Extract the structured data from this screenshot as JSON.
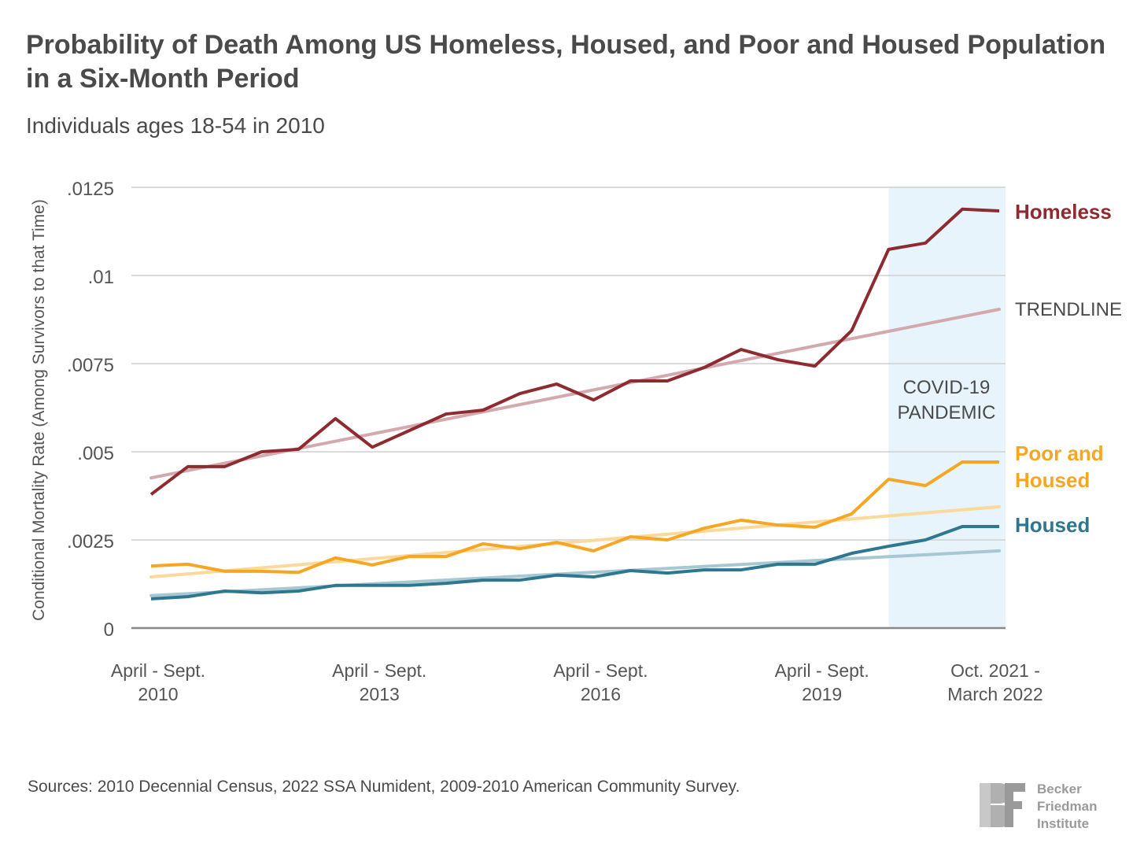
{
  "title": "Probability of Death Among US Homeless, Housed, and Poor and Housed Population in a Six-Month Period",
  "subtitle": "Individuals ages 18-54 in 2010",
  "source": "Sources: 2010 Decennial Census, 2022 SSA Numident, 2009-2010 American Community Survey.",
  "logo": {
    "lines": [
      "Becker",
      "Friedman",
      "Institute"
    ]
  },
  "chart_data": {
    "type": "line",
    "ylabel": "Conditional Mortality Rate (Among Survivors to that Time)",
    "xlabel": "",
    "ylim": [
      0,
      0.0125
    ],
    "yticks": [
      {
        "value": 0,
        "label": "0"
      },
      {
        "value": 0.0025,
        "label": ".0025"
      },
      {
        "value": 0.005,
        "label": ".005"
      },
      {
        "value": 0.0075,
        "label": ".0075"
      },
      {
        "value": 0.01,
        "label": ".01"
      },
      {
        "value": 0.0125,
        "label": ".0125"
      }
    ],
    "grid": true,
    "xticks": [
      {
        "index": 0,
        "label": [
          "April - Sept.",
          "2010"
        ]
      },
      {
        "index": 6,
        "label": [
          "April - Sept.",
          "2013"
        ]
      },
      {
        "index": 12,
        "label": [
          "April - Sept.",
          "2016"
        ]
      },
      {
        "index": 18,
        "label": [
          "April - Sept.",
          "2019"
        ]
      },
      {
        "index": 23,
        "label": [
          "Oct. 2021 -",
          "March 2022"
        ]
      }
    ],
    "n_periods": 24,
    "shaded_region": {
      "label": [
        "COVID-19",
        "PANDEMIC"
      ],
      "start_index": 20,
      "color": "#e8f4fc"
    },
    "series": [
      {
        "name": "Homeless",
        "label": [
          "Homeless"
        ],
        "color": "#8e2b31",
        "values": [
          0.00379,
          0.00458,
          0.00458,
          0.005,
          0.00507,
          0.00594,
          0.00513,
          0.0056,
          0.00607,
          0.00618,
          0.00665,
          0.00692,
          0.00647,
          0.00701,
          0.00701,
          0.00739,
          0.0079,
          0.00761,
          0.00743,
          0.00844,
          0.01074,
          0.01092,
          0.01188,
          0.01183
        ],
        "trend": [
          0.00426,
          0.00904
        ],
        "trend_color": "#d4a9ad"
      },
      {
        "name": "Poor and Housed",
        "label": [
          "Poor and",
          "Housed"
        ],
        "color": "#f5a623",
        "values": [
          0.00176,
          0.00181,
          0.00161,
          0.00161,
          0.00158,
          0.00199,
          0.00179,
          0.00203,
          0.00203,
          0.00239,
          0.00225,
          0.00243,
          0.00219,
          0.00259,
          0.0025,
          0.00283,
          0.00306,
          0.00292,
          0.00286,
          0.00324,
          0.00422,
          0.00404,
          0.00471,
          0.00471
        ],
        "trend": [
          0.00145,
          0.00344
        ],
        "trend_color": "#fbd99a"
      },
      {
        "name": "Housed",
        "label": [
          "Housed"
        ],
        "color": "#2f7690",
        "values": [
          0.00083,
          0.00089,
          0.00105,
          0.001,
          0.00105,
          0.00121,
          0.00121,
          0.00121,
          0.00127,
          0.00136,
          0.00136,
          0.0015,
          0.00145,
          0.00163,
          0.00156,
          0.00165,
          0.00165,
          0.00181,
          0.00181,
          0.00212,
          0.00232,
          0.0025,
          0.00288,
          0.00288
        ],
        "trend": [
          0.00092,
          0.00219
        ],
        "trend_color": "#a6c8d3"
      }
    ],
    "trend_label": "TRENDLINE"
  }
}
